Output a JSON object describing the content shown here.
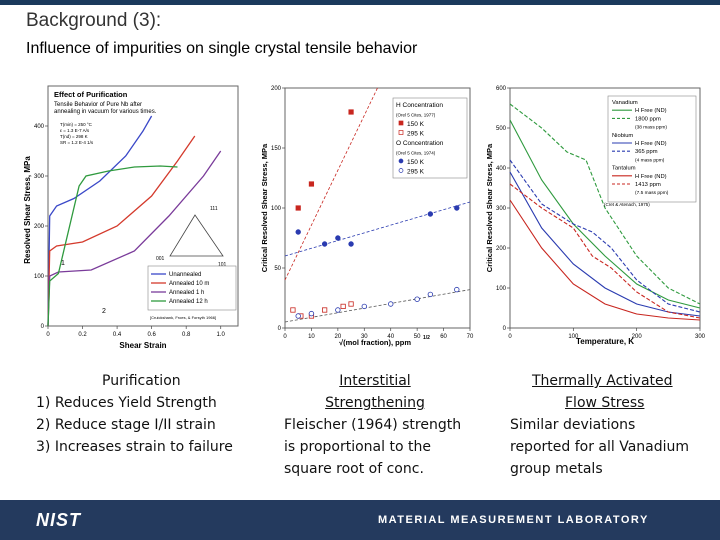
{
  "slide": {
    "title": "Background (3):",
    "subtitle": "Influence of impurities on single crystal tensile behavior",
    "footer_logo": "NIST",
    "footer_label": "MATERIAL MEASUREMENT LABORATORY"
  },
  "captions": {
    "col1": {
      "heading": "Purification",
      "items": [
        "1)  Reduces Yield Strength",
        "2)  Reduce stage I/II strain",
        "3)  Increases strain to failure"
      ]
    },
    "col2": {
      "heading": "Interstitial",
      "heading2": "Strengthening",
      "body": [
        "Fleischer (1964) strength",
        "is proportional to the",
        "square root of conc."
      ]
    },
    "col3": {
      "heading": "Thermally Activated",
      "heading2": "Flow Stress",
      "body": [
        "Similar deviations",
        "reported for all Vanadium",
        "group metals"
      ]
    }
  },
  "chart_data": [
    {
      "type": "line",
      "title": "Effect of Purification",
      "subtitle_lines": [
        "Tensile Behavior of Pure Nb after",
        "annealing in vacuum for various times."
      ],
      "conditions": [
        "T(min) = 250 °C",
        "ε = 1.3 E-7 A/s",
        "T(nd) = 298 K",
        "SR = 1.2 E-4 1/s"
      ],
      "xlabel": "Shear Strain",
      "ylabel": "Resolved Shear Stress, MPa",
      "xticks": [
        "0",
        "0.2",
        "0.4",
        "0.6",
        "0.8",
        "1.0"
      ],
      "yticks": [
        "0",
        "100",
        "200",
        "300",
        "400"
      ],
      "xlim": [
        0,
        1.1
      ],
      "ylim": [
        0,
        480
      ],
      "source": "[Cruickshank, Froes, & Forsyth 1966]",
      "triangle_labels": [
        "111",
        "001",
        "101"
      ],
      "annotations": [
        "1",
        "2"
      ],
      "series": [
        {
          "name": "Unannealed",
          "color": "#3a48c8",
          "x": [
            0,
            0.01,
            0.05,
            0.15,
            0.3,
            0.45,
            0.55,
            0.6
          ],
          "y": [
            0,
            220,
            240,
            255,
            290,
            340,
            390,
            420
          ]
        },
        {
          "name": "Annealed 10 m",
          "color": "#d43a2c",
          "x": [
            0,
            0.01,
            0.05,
            0.2,
            0.4,
            0.6,
            0.75,
            0.85
          ],
          "y": [
            0,
            150,
            160,
            168,
            200,
            260,
            330,
            380
          ]
        },
        {
          "name": "Annealed 1 h",
          "color": "#7a3b9a",
          "x": [
            0,
            0.01,
            0.06,
            0.25,
            0.5,
            0.7,
            0.9,
            1.0
          ],
          "y": [
            0,
            100,
            108,
            112,
            150,
            220,
            300,
            350
          ]
        },
        {
          "name": "Annealed 12 h",
          "color": "#2f9a3e",
          "x": [
            0,
            0.01,
            0.06,
            0.18,
            0.22,
            0.35,
            0.5,
            0.65,
            0.75
          ],
          "y": [
            0,
            90,
            105,
            280,
            300,
            310,
            318,
            320,
            318
          ]
        }
      ]
    },
    {
      "type": "scatter",
      "xlabel": "√(mol fraction), ppm",
      "xlabel_sup": "1/2",
      "ylabel": "Critical Resolved Shear Stress, MPa",
      "xticks": [
        "0",
        "10",
        "20",
        "30",
        "40",
        "50",
        "60",
        "70"
      ],
      "yticks": [
        "0",
        "50",
        "100",
        "150",
        "200"
      ],
      "xlim": [
        0,
        70
      ],
      "ylim": [
        0,
        200
      ],
      "legend": [
        "H Concentration",
        "(Orel 5 Cites, 1977)",
        "150 K",
        "295 K",
        "O Concentration",
        "(Orel 5 Cites, 1974)",
        "150 K",
        "295 K"
      ],
      "series": [
        {
          "name": "H 150 K",
          "color": "#c8261f",
          "marker": "square-filled",
          "x": [
            5,
            10,
            25
          ],
          "y": [
            100,
            120,
            180
          ]
        },
        {
          "name": "H 295 K",
          "color": "#c8261f",
          "marker": "square-open",
          "x": [
            3,
            6,
            10,
            15,
            22,
            25
          ],
          "y": [
            15,
            10,
            10,
            15,
            18,
            20
          ]
        },
        {
          "name": "O 150 K",
          "color": "#2a3bb0",
          "marker": "circle-filled",
          "x": [
            5,
            15,
            20,
            25,
            55,
            65
          ],
          "y": [
            80,
            70,
            75,
            70,
            95,
            100
          ]
        },
        {
          "name": "O 295 K",
          "color": "#2a3bb0",
          "marker": "circle-open",
          "x": [
            5,
            10,
            20,
            30,
            40,
            50,
            55,
            65
          ],
          "y": [
            10,
            12,
            15,
            18,
            20,
            24,
            28,
            32
          ]
        }
      ],
      "fit_lines": [
        {
          "color": "#c8261f",
          "x": [
            0,
            35
          ],
          "y": [
            40,
            200
          ]
        },
        {
          "color": "#2a3bb0",
          "x": [
            0,
            70
          ],
          "y": [
            60,
            105
          ]
        },
        {
          "color": "#555555",
          "x": [
            0,
            70
          ],
          "y": [
            5,
            32
          ]
        }
      ]
    },
    {
      "type": "line",
      "xlabel": "Temperature, K",
      "ylabel": "Critical Resolved Shear Stress, MPa",
      "xticks": [
        "0",
        "100",
        "200",
        "300"
      ],
      "yticks": [
        "0",
        "100",
        "200",
        "300",
        "400",
        "500",
        "600"
      ],
      "xlim": [
        0,
        300
      ],
      "ylim": [
        0,
        600
      ],
      "source": "(Cret & Atenach, 1975)",
      "legend": [
        "Vanadium",
        "H Free (ND)",
        "1800 ppm",
        "(38 mass ppm)",
        "Niobium",
        "H Free (ND)",
        "365 ppm",
        "(4 mass ppm)",
        "Tantalum",
        "H Free (ND)",
        "1413 ppm",
        "(7.5 mass ppm)"
      ],
      "series": [
        {
          "name": "Vanadium H Free",
          "color": "#2f9a3e",
          "dash": false,
          "x": [
            0,
            50,
            100,
            150,
            200,
            250,
            300
          ],
          "y": [
            520,
            370,
            260,
            180,
            110,
            70,
            50
          ]
        },
        {
          "name": "Vanadium 1800 ppm",
          "color": "#2f9a3e",
          "dash": true,
          "x": [
            0,
            50,
            90,
            120,
            150,
            200,
            250,
            300
          ],
          "y": [
            560,
            500,
            440,
            420,
            300,
            180,
            100,
            60
          ]
        },
        {
          "name": "Niobium H Free",
          "color": "#2a3bb0",
          "dash": false,
          "x": [
            0,
            50,
            100,
            150,
            200,
            250,
            300
          ],
          "y": [
            390,
            250,
            160,
            100,
            60,
            40,
            30
          ]
        },
        {
          "name": "Niobium 365 ppm",
          "color": "#2a3bb0",
          "dash": true,
          "x": [
            0,
            50,
            100,
            130,
            160,
            200,
            250,
            300
          ],
          "y": [
            420,
            310,
            260,
            240,
            200,
            120,
            60,
            40
          ]
        },
        {
          "name": "Tantalum H Free",
          "color": "#c8261f",
          "dash": false,
          "x": [
            0,
            50,
            100,
            150,
            200,
            250,
            300
          ],
          "y": [
            320,
            200,
            110,
            60,
            35,
            25,
            20
          ]
        },
        {
          "name": "Tantalum 1413 ppm",
          "color": "#c8261f",
          "dash": true,
          "x": [
            0,
            50,
            100,
            130,
            160,
            200,
            250,
            300
          ],
          "y": [
            360,
            300,
            250,
            180,
            150,
            90,
            40,
            25
          ]
        }
      ]
    }
  ]
}
